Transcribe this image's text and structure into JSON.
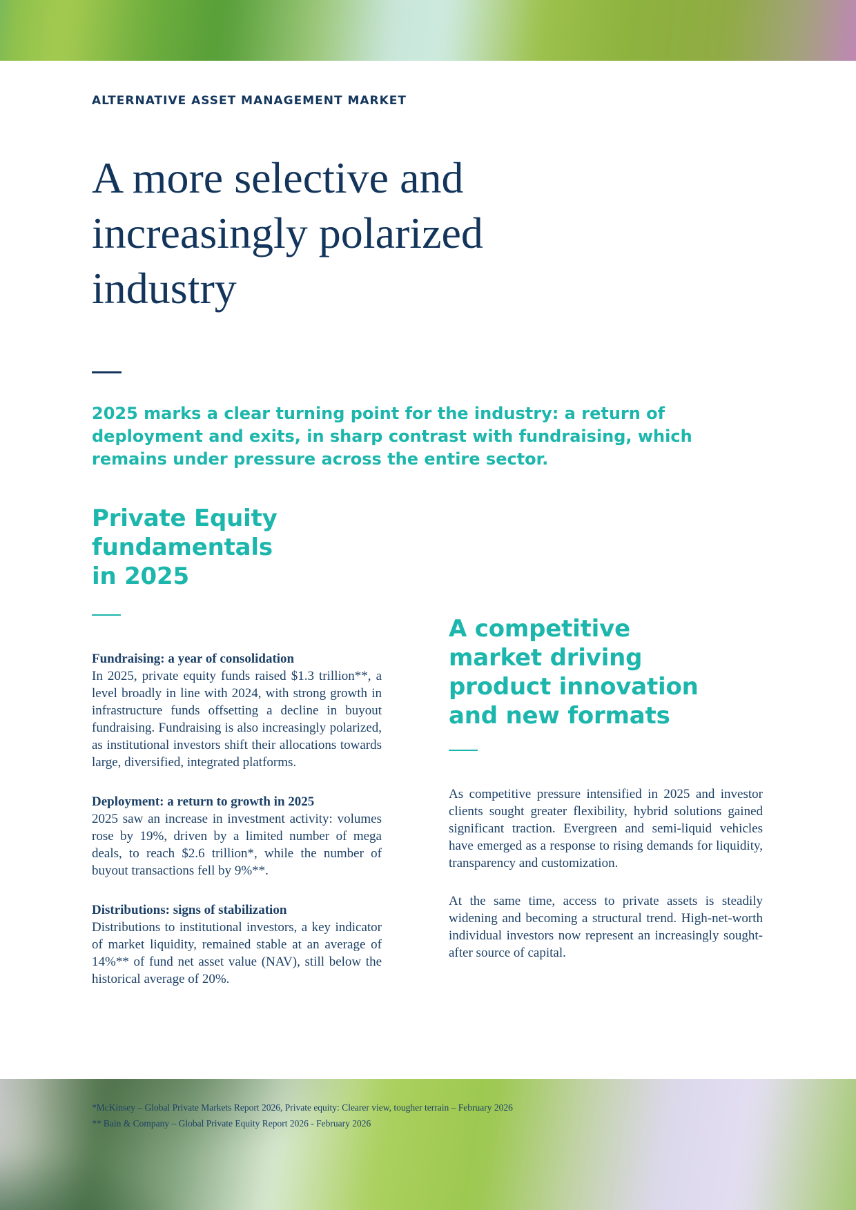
{
  "header": {
    "eyebrow": "ALTERNATIVE ASSET MANAGEMENT MARKET",
    "headline_lines": [
      "A more selective and",
      "increasingly polarized",
      "industry"
    ],
    "intro_lines": [
      "2025 marks a clear turning point for the industry: a return of",
      "deployment and exits, in sharp contrast with fundraising, which",
      "remains under pressure across the entire sector."
    ]
  },
  "left_column": {
    "heading_lines": [
      "Private Equity",
      "fundamentals",
      "in 2025"
    ],
    "sections": [
      {
        "title": "Fundraising: a year of consolidation",
        "body": "In 2025, private equity funds raised $1.3 trillion**, a level broadly in line with 2024, with strong growth in infrastructure funds offsetting a decline in buyout fundraising. Fundraising is also increasingly polarized, as institutional investors shift their allocations towards large, diversified, integrated platforms."
      },
      {
        "title": "Deployment: a return to growth in 2025",
        "body": "2025 saw an increase in investment activity: volumes rose by 19%, driven by a limited number of mega deals, to reach $2.6 trillion*, while the number of buyout transactions fell by 9%**."
      },
      {
        "title": "Distributions: signs of stabilization",
        "body": "Distributions to institutional investors, a key indicator of market liquidity, remained stable at an average of 14%** of fund net asset value (NAV), still below the historical average of 20%."
      }
    ]
  },
  "right_column": {
    "heading_lines": [
      "A competitive",
      "market driving",
      "product innovation",
      "and new formats"
    ],
    "paragraphs": [
      "As competitive pressure intensified in 2025 and investor clients sought greater flexibility, hybrid solutions gained significant traction. Evergreen and semi-liquid vehicles have emerged as a response to rising demands for liquidity, transparency and customization.",
      "At the same time, access to private assets is steadily widening and becoming a structural trend. High-net-worth individual investors now represent an increasingly sought-after source of capital."
    ]
  },
  "footnotes": [
    "*McKinsey – Global Private Markets Report 2026, Private equity: Clearer view, tougher terrain – February 2026",
    "** Bain & Company – Global Private Equity Report 2026 - February 2026"
  ],
  "colors": {
    "navy_heading": "#13355b",
    "navy_body": "#1c4066",
    "teal_accent": "#1cb6ac",
    "top_gradient": [
      "#47a28e",
      "#a6cb51",
      "#569e38",
      "#cdeae0",
      "#8db23e",
      "#c77fc7"
    ],
    "bottom_gradient": [
      "#d6cee2",
      "#54794f",
      "#d9e9d2",
      "#9cc84f",
      "#e3def1",
      "#8fbf5a"
    ]
  }
}
